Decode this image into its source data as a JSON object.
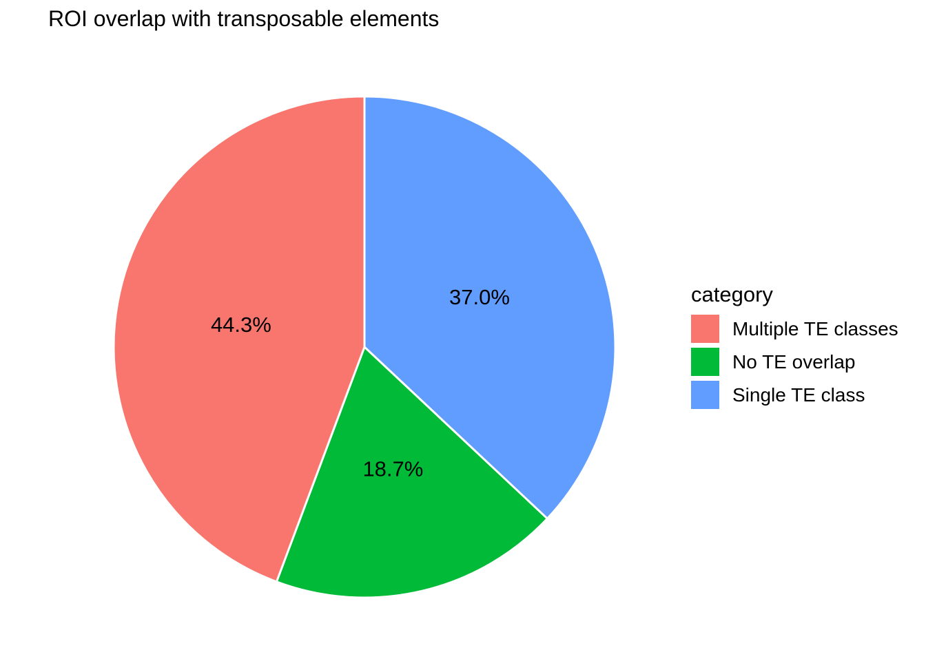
{
  "title": "ROI overlap with transposable elements",
  "chart_data": {
    "type": "pie",
    "title": "ROI overlap with transposable elements",
    "legend_title": "category",
    "legend_position": "right",
    "start_angle_deg": 0,
    "direction": "clockwise",
    "slice_border_color": "#FFFFFF",
    "label_color": "#000000",
    "slices": [
      {
        "label": "Single TE class",
        "value_pct": 37.0,
        "value_label": "37.0%",
        "color": "#619CFF"
      },
      {
        "label": "No TE overlap",
        "value_pct": 18.7,
        "value_label": "18.7%",
        "color": "#00BA38"
      },
      {
        "label": "Multiple TE classes",
        "value_pct": 44.3,
        "value_label": "44.3%",
        "color": "#F8766D"
      }
    ]
  },
  "legend": {
    "title": "category",
    "items": [
      {
        "label": "Multiple TE classes",
        "color": "#F8766D"
      },
      {
        "label": "No TE overlap",
        "color": "#00BA38"
      },
      {
        "label": "Single TE class",
        "color": "#619CFF"
      }
    ]
  }
}
